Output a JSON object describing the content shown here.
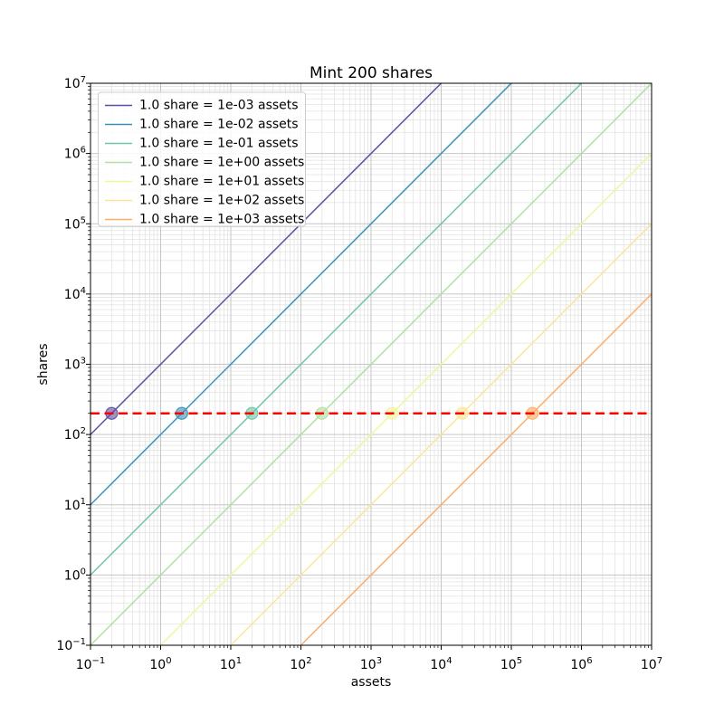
{
  "figure": {
    "background": "#ffffff"
  },
  "chart_data": {
    "type": "line",
    "title": "Mint 200 shares",
    "xlabel": "assets",
    "ylabel": "shares",
    "xscale": "log",
    "yscale": "log",
    "xlim": [
      0.1,
      10000000
    ],
    "ylim": [
      0.1,
      10000000
    ],
    "x_tick_exponents": [
      -1,
      0,
      1,
      2,
      3,
      4,
      5,
      6,
      7
    ],
    "y_tick_exponents": [
      -1,
      0,
      1,
      2,
      3,
      4,
      5,
      6,
      7
    ],
    "grid": {
      "which": "both",
      "major_color": "#c6c6c6",
      "minor_color": "#e2e2e2"
    },
    "legend": {
      "position": "upper left",
      "frame_color": "#cccccc",
      "background": "rgba(255,255,255,0.85)"
    },
    "series": [
      {
        "label": "1.0 share = 1e-03 assets",
        "assets_per_share": 0.001,
        "color": "#5e4fa2",
        "marker": {
          "assets": 0.2,
          "shares": 200
        }
      },
      {
        "label": "1.0 share = 1e-02 assets",
        "assets_per_share": 0.01,
        "color": "#3a92b8",
        "marker": {
          "assets": 2,
          "shares": 200
        }
      },
      {
        "label": "1.0 share = 1e-01 assets",
        "assets_per_share": 0.1,
        "color": "#70c6a5",
        "marker": {
          "assets": 20,
          "shares": 200
        }
      },
      {
        "label": "1.0 share = 1e+00 assets",
        "assets_per_share": 1,
        "color": "#b2e0a2",
        "marker": {
          "assets": 200,
          "shares": 200
        }
      },
      {
        "label": "1.0 share = 1e+01 assets",
        "assets_per_share": 10,
        "color": "#edf79d",
        "marker": {
          "assets": 2000,
          "shares": 200
        }
      },
      {
        "label": "1.0 share = 1e+02 assets",
        "assets_per_share": 100,
        "color": "#fee596",
        "marker": {
          "assets": 20000,
          "shares": 200
        }
      },
      {
        "label": "1.0 share = 1e+03 assets",
        "assets_per_share": 1000,
        "color": "#fdae61",
        "marker": {
          "assets": 200000,
          "shares": 200
        }
      }
    ],
    "hline": {
      "shares": 200,
      "color": "#ff0000",
      "linestyle": "dashed",
      "linewidth": 2.5
    }
  }
}
